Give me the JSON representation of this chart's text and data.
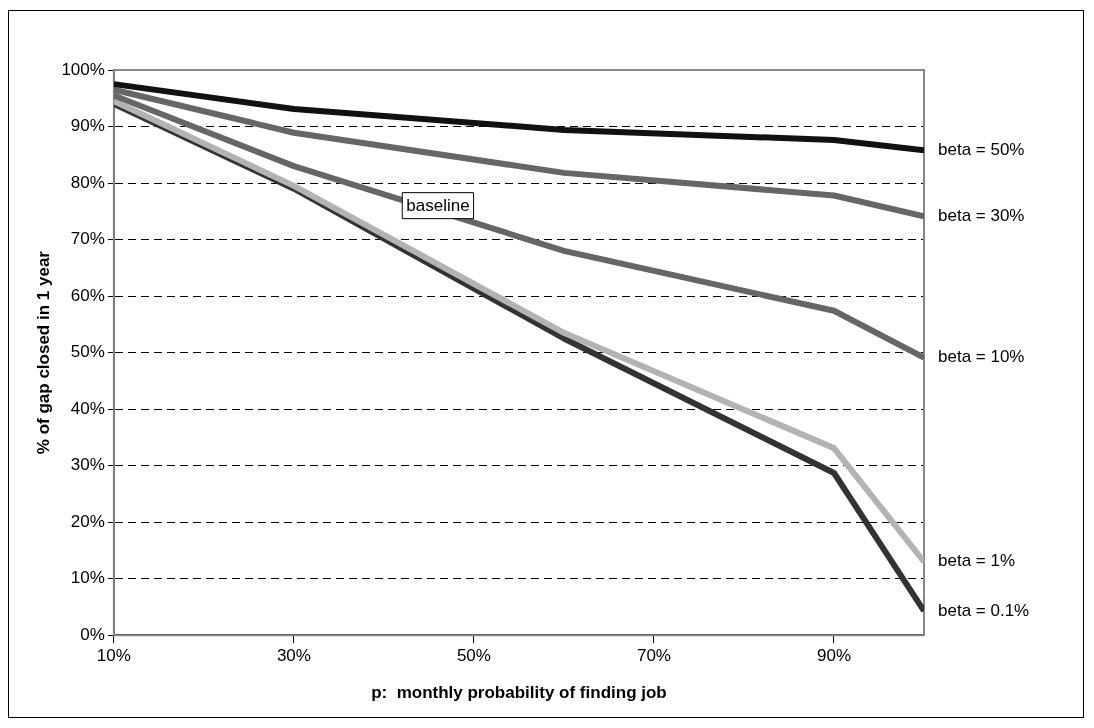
{
  "chart_data": {
    "type": "line",
    "xlabel": "p:  monthly probability of finding job",
    "ylabel": "% of gap closed in 1 year",
    "x": [
      10,
      30,
      60,
      90,
      100
    ],
    "series": [
      {
        "name": "beta = 50%",
        "color": "#111111",
        "values": [
          97.5,
          93.1,
          89.4,
          87.6,
          85.8
        ]
      },
      {
        "name": "beta = 30%",
        "color": "#666666",
        "values": [
          96.5,
          88.9,
          81.8,
          77.8,
          74.1
        ]
      },
      {
        "name": "beta = 10%",
        "color": "#666666",
        "values": [
          95.5,
          83.0,
          68.0,
          57.4,
          49.1
        ]
      },
      {
        "name": "beta = 1%",
        "color": "#b3b3b3",
        "values": [
          94.5,
          79.5,
          53.5,
          33.1,
          13.0
        ]
      },
      {
        "name": "beta = 0.1%",
        "color": "#333333",
        "values": [
          94,
          79,
          52.5,
          28.7,
          4.3
        ]
      }
    ],
    "xlim": [
      10,
      100
    ],
    "xticks": [
      {
        "value": 10,
        "label": "10%"
      },
      {
        "value": 30,
        "label": "30%"
      },
      {
        "value": 50,
        "label": "50%"
      },
      {
        "value": 70,
        "label": "70%"
      },
      {
        "value": 90,
        "label": "90%"
      }
    ],
    "ylim": [
      0,
      100
    ],
    "yticks": [
      {
        "value": 0,
        "label": "0%"
      },
      {
        "value": 10,
        "label": "10%"
      },
      {
        "value": 20,
        "label": "20%"
      },
      {
        "value": 30,
        "label": "30%"
      },
      {
        "value": 40,
        "label": "40%"
      },
      {
        "value": 50,
        "label": "50%"
      },
      {
        "value": 60,
        "label": "60%"
      },
      {
        "value": 70,
        "label": "70%"
      },
      {
        "value": 80,
        "label": "80%"
      },
      {
        "value": 90,
        "label": "90%"
      },
      {
        "value": 100,
        "label": "100%"
      }
    ],
    "annotations": [
      {
        "text": "baseline",
        "x": 46,
        "y": 76
      }
    ],
    "grid": "y",
    "legend": false,
    "marker": "none",
    "line_style": "solid"
  }
}
